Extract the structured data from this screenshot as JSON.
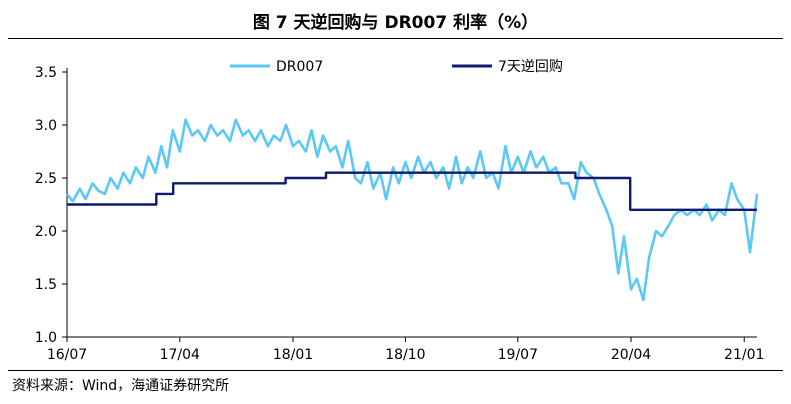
{
  "source": "资料来源：Wind，海通证券研究所",
  "chart_data": {
    "type": "line",
    "title": "图 7 天逆回购与 DR007 利率（%）",
    "xlabel": "",
    "ylabel": "",
    "ylim": [
      1.0,
      3.5
    ],
    "yticks": [
      "1.0",
      "1.5",
      "2.0",
      "2.5",
      "3.0",
      "3.5"
    ],
    "xticks": [
      "16/07",
      "17/04",
      "18/01",
      "18/10",
      "19/07",
      "20/04",
      "21/01"
    ],
    "grid": false,
    "legend_position": "top",
    "series": [
      {
        "name": "DR007",
        "color": "#5bc8f5",
        "x": [
          "2016-07-01",
          "2016-07-15",
          "2016-08-01",
          "2016-08-15",
          "2016-09-01",
          "2016-09-15",
          "2016-10-01",
          "2016-10-15",
          "2016-11-01",
          "2016-11-15",
          "2016-12-01",
          "2016-12-15",
          "2017-01-01",
          "2017-01-15",
          "2017-02-01",
          "2017-02-15",
          "2017-03-01",
          "2017-03-15",
          "2017-04-01",
          "2017-04-15",
          "2017-05-01",
          "2017-05-15",
          "2017-06-01",
          "2017-06-15",
          "2017-07-01",
          "2017-07-15",
          "2017-08-01",
          "2017-08-15",
          "2017-09-01",
          "2017-09-15",
          "2017-10-01",
          "2017-10-15",
          "2017-11-01",
          "2017-11-15",
          "2017-12-01",
          "2017-12-15",
          "2018-01-01",
          "2018-01-15",
          "2018-02-01",
          "2018-02-15",
          "2018-03-01",
          "2018-03-15",
          "2018-04-01",
          "2018-04-15",
          "2018-05-01",
          "2018-05-15",
          "2018-06-01",
          "2018-06-15",
          "2018-07-01",
          "2018-07-15",
          "2018-08-01",
          "2018-08-15",
          "2018-09-01",
          "2018-09-15",
          "2018-10-01",
          "2018-10-15",
          "2018-11-01",
          "2018-11-15",
          "2018-12-01",
          "2018-12-15",
          "2019-01-01",
          "2019-01-15",
          "2019-02-01",
          "2019-02-15",
          "2019-03-01",
          "2019-03-15",
          "2019-04-01",
          "2019-04-15",
          "2019-05-01",
          "2019-05-15",
          "2019-06-01",
          "2019-06-15",
          "2019-07-01",
          "2019-07-15",
          "2019-08-01",
          "2019-08-15",
          "2019-09-01",
          "2019-09-15",
          "2019-10-01",
          "2019-10-15",
          "2019-11-01",
          "2019-11-15",
          "2019-12-01",
          "2019-12-15",
          "2020-01-01",
          "2020-01-15",
          "2020-02-01",
          "2020-02-15",
          "2020-03-01",
          "2020-03-15",
          "2020-04-01",
          "2020-04-15",
          "2020-05-01",
          "2020-05-15",
          "2020-06-01",
          "2020-06-15",
          "2020-07-01",
          "2020-07-15",
          "2020-08-01",
          "2020-08-15",
          "2020-09-01",
          "2020-09-15",
          "2020-10-01",
          "2020-10-15",
          "2020-11-01",
          "2020-11-15",
          "2020-12-01",
          "2020-12-15",
          "2021-01-01",
          "2021-01-15",
          "2021-02-01"
        ],
        "values": [
          2.35,
          2.28,
          2.4,
          2.3,
          2.45,
          2.38,
          2.35,
          2.5,
          2.4,
          2.55,
          2.45,
          2.6,
          2.5,
          2.7,
          2.55,
          2.8,
          2.6,
          2.95,
          2.75,
          3.05,
          2.9,
          2.95,
          2.85,
          3.0,
          2.9,
          2.95,
          2.85,
          3.05,
          2.9,
          2.95,
          2.85,
          2.95,
          2.8,
          2.9,
          2.85,
          3.0,
          2.8,
          2.85,
          2.75,
          2.95,
          2.7,
          2.9,
          2.75,
          2.8,
          2.6,
          2.85,
          2.5,
          2.45,
          2.65,
          2.4,
          2.55,
          2.3,
          2.6,
          2.45,
          2.65,
          2.5,
          2.7,
          2.55,
          2.65,
          2.5,
          2.6,
          2.4,
          2.7,
          2.45,
          2.6,
          2.5,
          2.75,
          2.5,
          2.55,
          2.4,
          2.8,
          2.55,
          2.7,
          2.55,
          2.75,
          2.6,
          2.7,
          2.55,
          2.6,
          2.45,
          2.45,
          2.3,
          2.65,
          2.55,
          2.5,
          2.35,
          2.2,
          2.05,
          1.6,
          1.95,
          1.45,
          1.55,
          1.35,
          1.75,
          2.0,
          1.95,
          2.05,
          2.15,
          2.2,
          2.15,
          2.2,
          2.15,
          2.25,
          2.1,
          2.2,
          2.15,
          2.45,
          2.3,
          2.2,
          1.8,
          2.35
        ],
        "note_on_values": "approximate, read from chart"
      },
      {
        "name": "7天逆回购",
        "color": "#0f1a6e",
        "x": [
          "2016-07-01",
          "2017-02-03",
          "2017-02-03",
          "2017-03-16",
          "2017-03-16",
          "2017-12-14",
          "2017-12-14",
          "2018-03-22",
          "2018-03-22",
          "2019-11-18",
          "2019-11-18",
          "2020-03-30",
          "2020-03-30",
          "2021-02-01"
        ],
        "values": [
          2.25,
          2.25,
          2.35,
          2.35,
          2.45,
          2.45,
          2.5,
          2.5,
          2.55,
          2.55,
          2.5,
          2.5,
          2.2,
          2.2
        ]
      }
    ]
  }
}
